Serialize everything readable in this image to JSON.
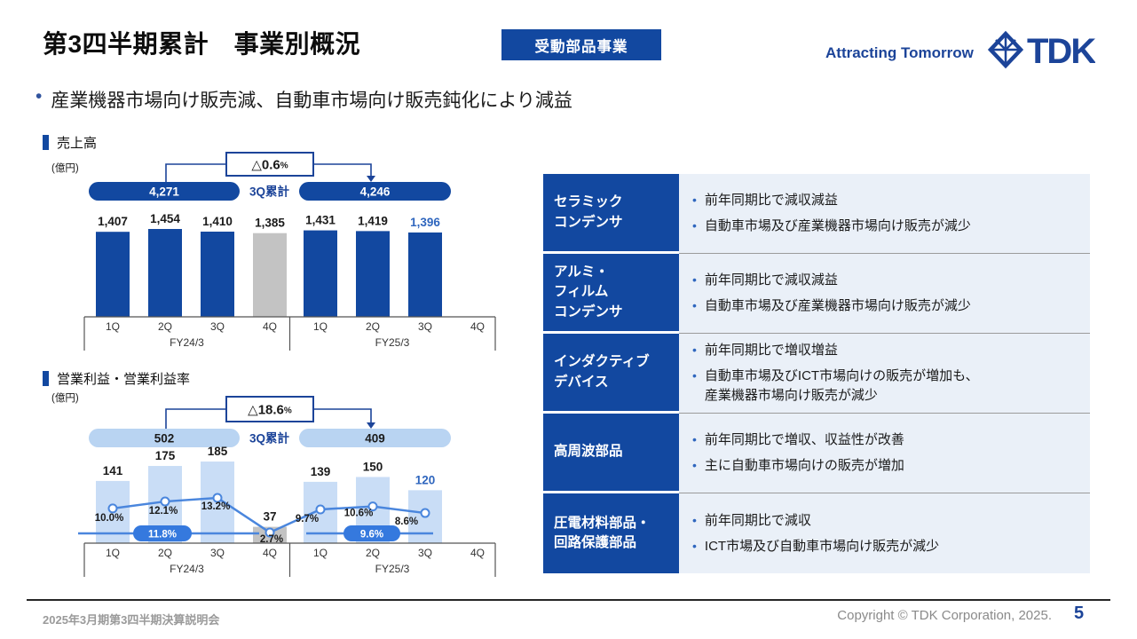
{
  "header": {
    "title": "第3四半期累計　事業別概況",
    "badge": "受動部品事業",
    "tagline": "Attracting Tomorrow",
    "logo_text": "TDK"
  },
  "summary_bullet": "産業機器市場向け販売減、自動車市場向け販売鈍化により減益",
  "colors": {
    "primary_blue": "#1248A0",
    "brand_blue": "#1C4499",
    "light_bar_blue": "#C9DDF6",
    "light_pill_blue": "#B9D4F2",
    "line_blue": "#4A86DD",
    "avg_pill_blue": "#3579DE",
    "gray_bar": "#C3C3C3",
    "value_highlight_blue": "#2F66BE",
    "table_content_bg": "#EAF0F8"
  },
  "chart_data": [
    {
      "id": "revenue",
      "type": "bar",
      "title": "売上高",
      "unit": "(億円)",
      "categories": [
        "1Q",
        "2Q",
        "3Q",
        "4Q",
        "1Q",
        "2Q",
        "3Q",
        "4Q"
      ],
      "fiscal_years": [
        "FY24/3",
        "FY25/3"
      ],
      "values": [
        1407,
        1454,
        1410,
        1385,
        1431,
        1419,
        1396
      ],
      "value_labels": [
        "1,407",
        "1,454",
        "1,410",
        "1,385",
        "1,431",
        "1,419",
        "1,396"
      ],
      "gray_index": 3,
      "blue_label_index": 6,
      "ylim": [
        0,
        1500
      ],
      "q3_cumulative": {
        "label": "3Q累計",
        "prior": "4,271",
        "current": "4,246",
        "change_label": "△0.6",
        "change_unit": "%"
      }
    },
    {
      "id": "operating-profit",
      "type": "bar+line",
      "title": "営業利益・営業利益率",
      "unit": "(億円)",
      "categories": [
        "1Q",
        "2Q",
        "3Q",
        "4Q",
        "1Q",
        "2Q",
        "3Q",
        "4Q"
      ],
      "fiscal_years": [
        "FY24/3",
        "FY25/3"
      ],
      "values": [
        141,
        175,
        185,
        37,
        139,
        150,
        120
      ],
      "value_labels": [
        "141",
        "175",
        "185",
        "37",
        "139",
        "150",
        "120"
      ],
      "gray_index": 3,
      "blue_label_index": 6,
      "margin_pct": [
        10.0,
        12.1,
        13.2,
        2.7,
        9.7,
        10.6,
        8.6
      ],
      "margin_labels": [
        "10.0%",
        "12.1%",
        "13.2%",
        "2.7%",
        "9.7%",
        "10.6%",
        "8.6%"
      ],
      "avg_margins": [
        {
          "fy": "FY24/3",
          "label": "11.8%"
        },
        {
          "fy": "FY25/3",
          "label": "9.6%"
        }
      ],
      "q3_cumulative": {
        "label": "3Q累計",
        "prior": "502",
        "current": "409",
        "change_label": "△18.6",
        "change_unit": "%"
      }
    }
  ],
  "segments_table": {
    "rows": [
      {
        "segment": "セラミック\nコンデンサ",
        "points": [
          "前年同期比で減収減益",
          "自動車市場及び産業機器市場向け販売が減少"
        ]
      },
      {
        "segment": "アルミ・\nフィルム\nコンデンサ",
        "points": [
          "前年同期比で減収減益",
          "自動車市場及び産業機器市場向け販売が減少"
        ]
      },
      {
        "segment": "インダクティブ\nデバイス",
        "points": [
          "前年同期比で増収増益",
          "自動車市場及びICT市場向けの販売が増加も、\n産業機器市場向け販売が減少"
        ]
      },
      {
        "segment": "高周波部品",
        "points": [
          "前年同期比で増収、収益性が改善",
          "主に自動車市場向けの販売が増加"
        ]
      },
      {
        "segment": "圧電材料部品・\n回路保護部品",
        "points": [
          "前年同期比で減収",
          "ICT市場及び自動車市場向け販売が減少"
        ]
      }
    ]
  },
  "footer": {
    "event": "2025年3月期第3四半期決算説明会",
    "copyright": "Copyright © TDK Corporation, 2025.",
    "page": "5"
  }
}
